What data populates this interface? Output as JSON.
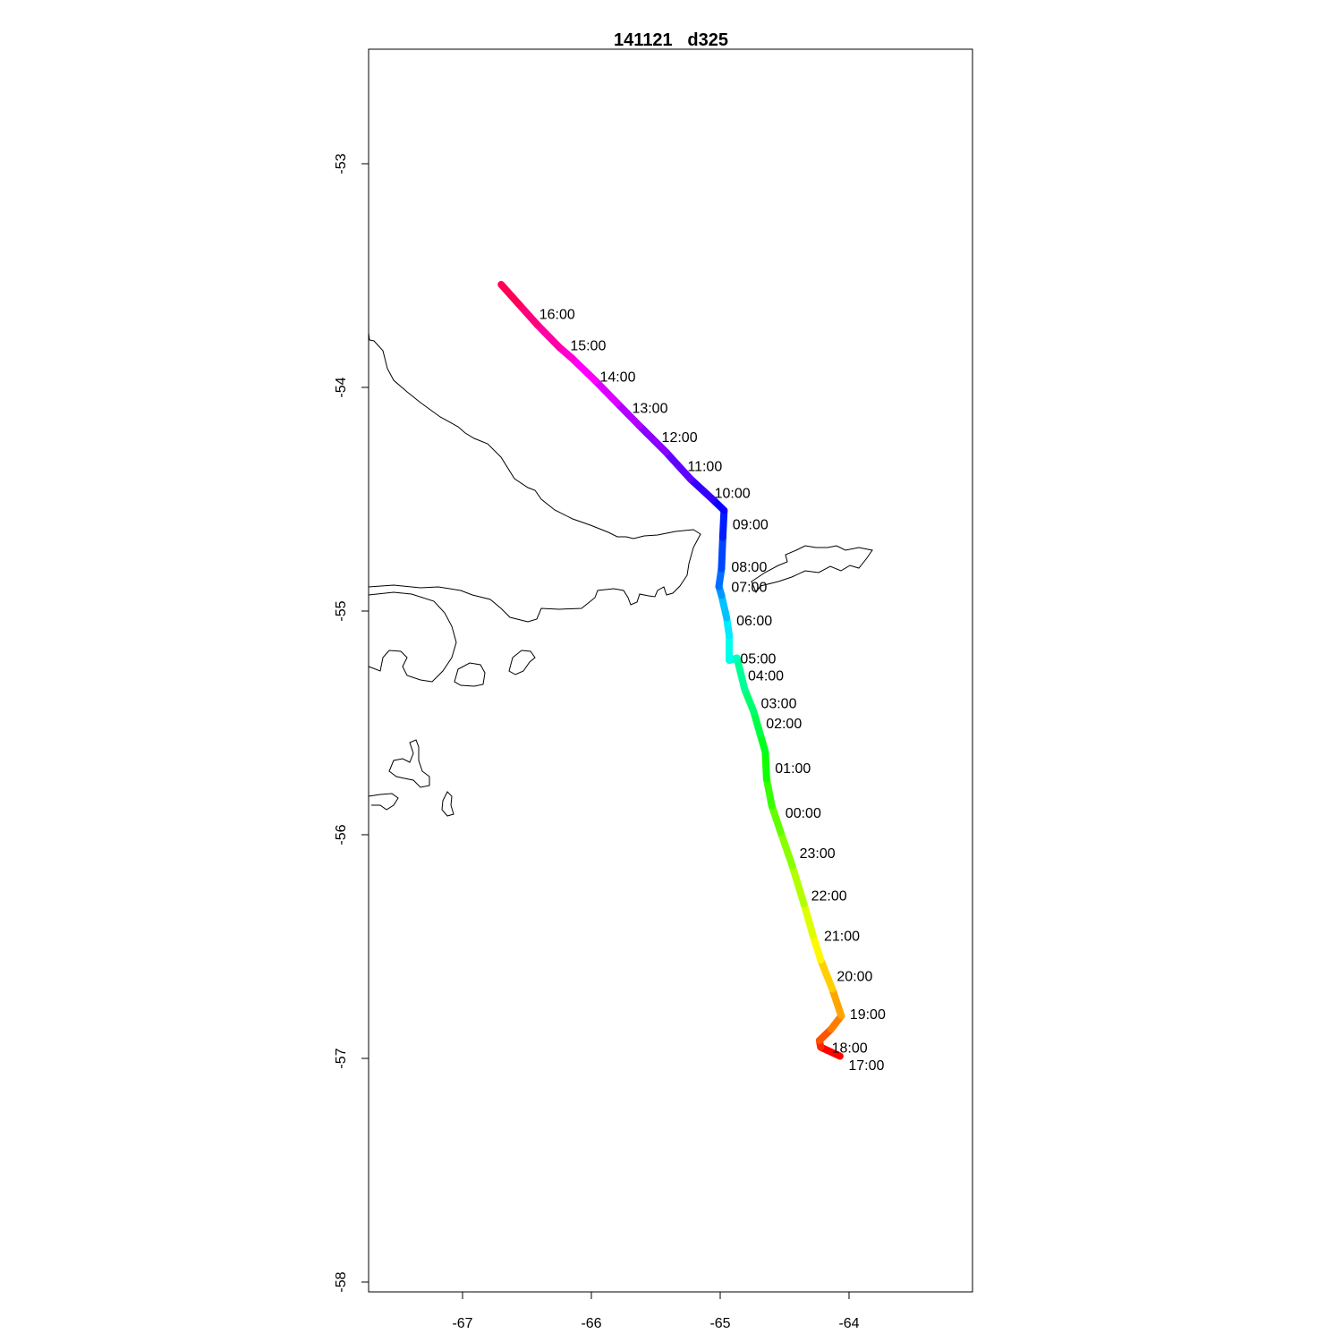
{
  "chart_data": {
    "type": "map-track",
    "title": "141121   d325",
    "xlim": [
      -67.73,
      -63.04
    ],
    "ylim": [
      -58.04,
      -52.49
    ],
    "x_ticks": [
      "-67",
      "-66",
      "-65",
      "-64"
    ],
    "y_ticks": [
      "-53",
      "-54",
      "-55",
      "-56",
      "-57",
      "-58"
    ],
    "color_scale": "rainbow hue by time",
    "track": [
      [
        -64.07,
        -56.99
      ],
      [
        -64.22,
        -56.95
      ],
      [
        -64.23,
        -56.92
      ],
      [
        -64.14,
        -56.87
      ],
      [
        -64.06,
        -56.81
      ],
      [
        -64.13,
        -56.69
      ],
      [
        -64.22,
        -56.56
      ],
      [
        -64.28,
        -56.45
      ],
      [
        -64.35,
        -56.31
      ],
      [
        -64.44,
        -56.14
      ],
      [
        -64.53,
        -55.99
      ],
      [
        -64.6,
        -55.87
      ],
      [
        -64.64,
        -55.75
      ],
      [
        -64.65,
        -55.63
      ],
      [
        -64.69,
        -55.55
      ],
      [
        -64.74,
        -55.45
      ],
      [
        -64.81,
        -55.35
      ],
      [
        -64.87,
        -55.21
      ],
      [
        -64.93,
        -55.22
      ],
      [
        -64.93,
        -55.11
      ],
      [
        -64.95,
        -55.03
      ],
      [
        -64.99,
        -54.93
      ],
      [
        -65.01,
        -54.89
      ],
      [
        -64.99,
        -54.81
      ],
      [
        -64.98,
        -54.67
      ],
      [
        -64.97,
        -54.55
      ],
      [
        -65.06,
        -54.5
      ],
      [
        -65.23,
        -54.41
      ],
      [
        -65.42,
        -54.29
      ],
      [
        -65.63,
        -54.17
      ],
      [
        -65.8,
        -54.07
      ],
      [
        -65.97,
        -53.97
      ],
      [
        -66.15,
        -53.87
      ],
      [
        -66.25,
        -53.82
      ],
      [
        -66.42,
        -53.72
      ],
      [
        -66.56,
        -53.63
      ],
      [
        -66.7,
        -53.54
      ]
    ],
    "time_labels": [
      {
        "text": "16:00",
        "lon": -66.46,
        "lat": -53.67
      },
      {
        "text": "15:00",
        "lon": -66.22,
        "lat": -53.81
      },
      {
        "text": "14:00",
        "lon": -65.99,
        "lat": -53.95
      },
      {
        "text": "13:00",
        "lon": -65.74,
        "lat": -54.09
      },
      {
        "text": "12:00",
        "lon": -65.51,
        "lat": -54.22
      },
      {
        "text": "11:00",
        "lon": -65.31,
        "lat": -54.35
      },
      {
        "text": "10:00",
        "lon": -65.1,
        "lat": -54.47
      },
      {
        "text": "09:00",
        "lon": -64.96,
        "lat": -54.61
      },
      {
        "text": "08:00",
        "lon": -64.97,
        "lat": -54.8
      },
      {
        "text": "07:00",
        "lon": -64.97,
        "lat": -54.89
      },
      {
        "text": "06:00",
        "lon": -64.93,
        "lat": -55.04
      },
      {
        "text": "05:00",
        "lon": -64.9,
        "lat": -55.21
      },
      {
        "text": "04:00",
        "lon": -64.84,
        "lat": -55.23
      },
      {
        "text": "03:00",
        "lon": -64.74,
        "lat": -55.41
      },
      {
        "text": "02:00",
        "lon": -64.7,
        "lat": -55.5
      },
      {
        "text": "01:00",
        "lon": -64.63,
        "lat": -55.7
      },
      {
        "text": "00:00",
        "lon": -64.55,
        "lat": -55.9
      },
      {
        "text": "23:00",
        "lon": -64.44,
        "lat": -56.08
      },
      {
        "text": "22:00",
        "lon": -64.35,
        "lat": -56.27
      },
      {
        "text": "21:00",
        "lon": -64.25,
        "lat": -56.45
      },
      {
        "text": "20:00",
        "lon": -64.15,
        "lat": -56.63
      },
      {
        "text": "19:00",
        "lon": -64.05,
        "lat": -56.8
      },
      {
        "text": "18:00",
        "lon": -64.19,
        "lat": -56.95
      },
      {
        "text": "17:00",
        "lon": -64.06,
        "lat": -56.98
      }
    ]
  }
}
